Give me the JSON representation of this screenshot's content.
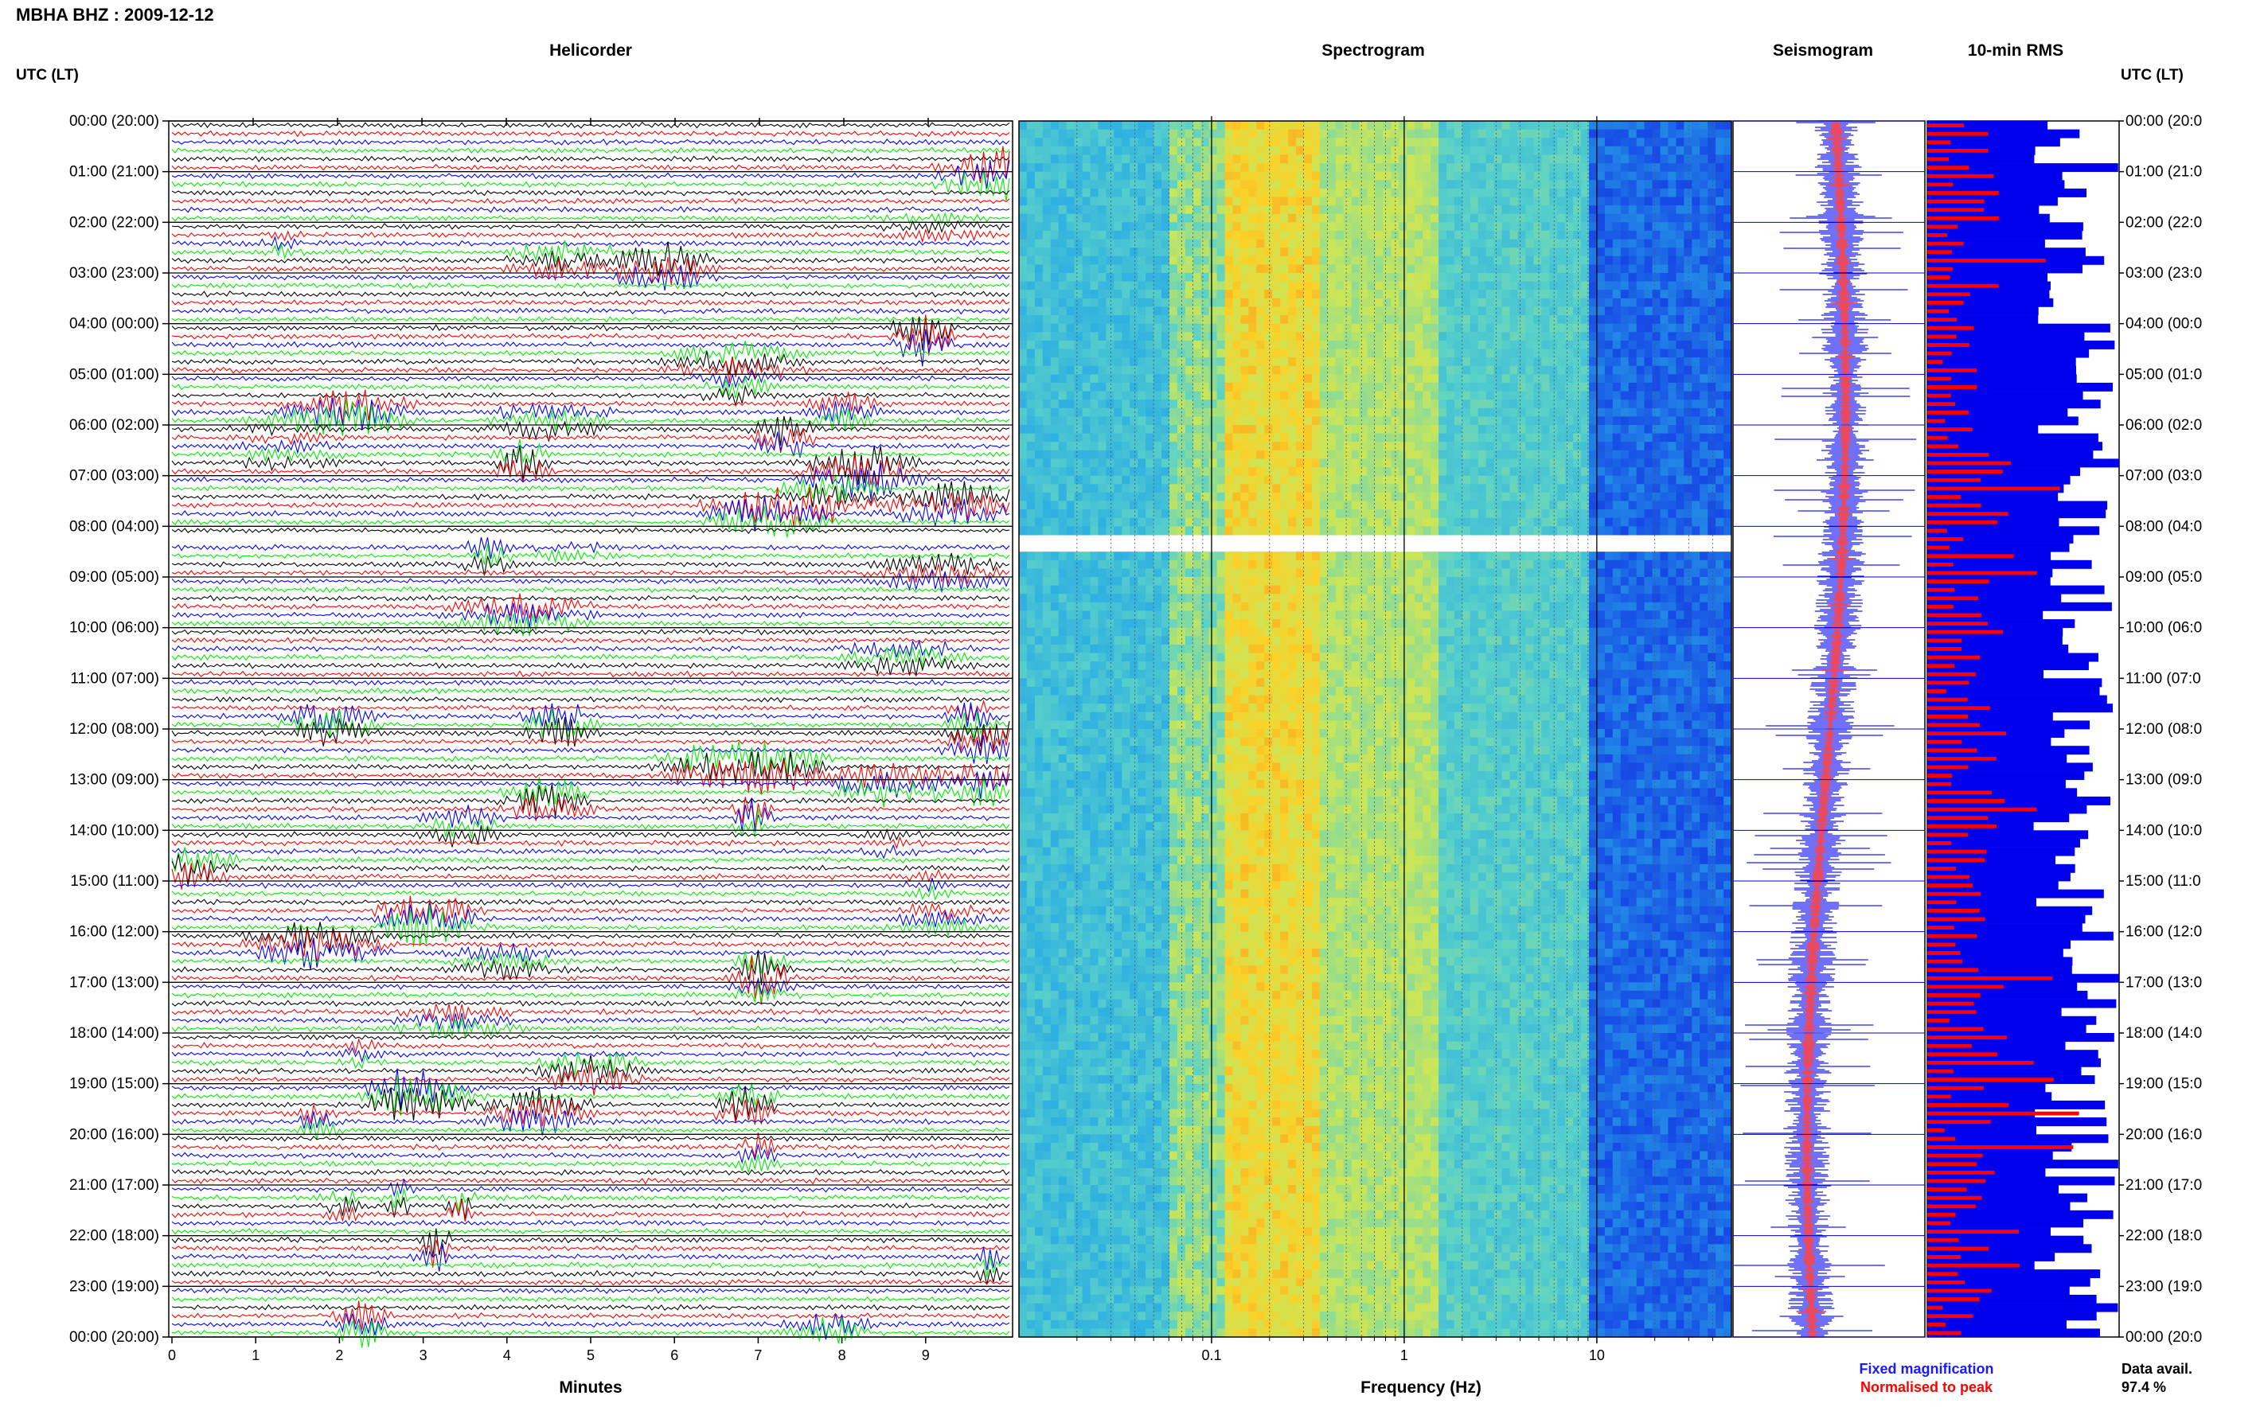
{
  "title": "MBHA BHZ : 2009-12-12",
  "left_axis_label": "UTC (LT)",
  "right_axis_label": "UTC (LT)",
  "panels": {
    "helicorder": "Helicorder",
    "spectrogram": "Spectrogram",
    "seismogram": "Seismogram",
    "rms": "10-min RMS"
  },
  "row_labels": [
    "00:00 (20:00)",
    "01:00 (21:00)",
    "02:00 (22:00)",
    "03:00 (23:00)",
    "04:00 (00:00)",
    "05:00 (01:00)",
    "06:00 (02:00)",
    "07:00 (03:00)",
    "08:00 (04:00)",
    "09:00 (05:00)",
    "10:00 (06:00)",
    "11:00 (07:00)",
    "12:00 (08:00)",
    "13:00 (09:00)",
    "14:00 (10:00)",
    "15:00 (11:00)",
    "16:00 (12:00)",
    "17:00 (13:00)",
    "18:00 (14:00)",
    "19:00 (15:00)",
    "20:00 (16:00)",
    "21:00 (17:00)",
    "22:00 (18:00)",
    "23:00 (19:00)",
    "00:00 (20:00)"
  ],
  "right_row_labels": [
    "00:00 (20:0",
    "01:00 (21:0",
    "02:00 (22:0",
    "03:00 (23:0",
    "04:00 (00:0",
    "05:00 (01:0",
    "06:00 (02:0",
    "07:00 (03:0",
    "08:00 (04:0",
    "09:00 (05:0",
    "10:00 (06:0",
    "11:00 (07:0",
    "12:00 (08:0",
    "13:00 (09:0",
    "14:00 (10:0",
    "15:00 (11:0",
    "16:00 (12:0",
    "17:00 (13:0",
    "18:00 (14:0",
    "19:00 (15:0",
    "20:00 (16:0",
    "21:00 (17:0",
    "22:00 (18:0",
    "23:00 (19:0",
    "00:00 (20:0"
  ],
  "helicorder_x": {
    "label": "Minutes",
    "ticks": [
      "0",
      "1",
      "2",
      "3",
      "4",
      "5",
      "6",
      "7",
      "8",
      "9"
    ],
    "range": [
      0,
      10
    ]
  },
  "spectrogram_x": {
    "label": "Frequency (Hz)",
    "ticks": [
      "0.1",
      "1",
      "10"
    ],
    "scale": "log",
    "range": [
      0.01,
      50
    ]
  },
  "legend": {
    "fixed": "Fixed magnification",
    "normalised": "Normalised to peak",
    "fixed_color": "#1a1aff",
    "normalised_color": "#ff0000"
  },
  "data_avail": {
    "label": "Data avail.",
    "value": "97.4 %"
  },
  "colors": {
    "trace_cycle": [
      "#000000",
      "#ff0000",
      "#0000ff",
      "#00ee00"
    ],
    "rms_fill": "#0000ee",
    "rms_peak": "#ff0000"
  },
  "chart_data": {
    "type": "heatmap",
    "hours": 24,
    "helicorder_lines_per_hour": 6,
    "gap_hours": [
      8.1,
      8.2
    ],
    "rms_normalised_peak_per_row": [
      0.35,
      0.3,
      0.3,
      0.25,
      0.2,
      0.22,
      0.4,
      0.35,
      0.25,
      0.3,
      0.28,
      0.3,
      0.35,
      0.45,
      0.3,
      0.3,
      0.25,
      0.3,
      0.35,
      0.35,
      0.4,
      0.3,
      0.35,
      0.3
    ]
  }
}
